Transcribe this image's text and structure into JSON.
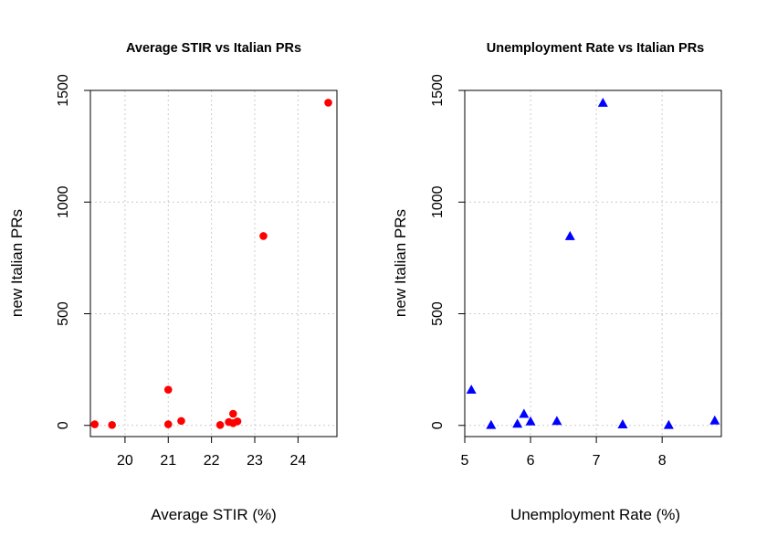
{
  "chart_data": [
    {
      "type": "scatter",
      "title": "Average STIR vs Italian PRs",
      "xlabel": "Average STIR (%)",
      "ylabel": "new Italian PRs",
      "xlim": [
        19.2,
        24.9
      ],
      "ylim": [
        -50,
        1500
      ],
      "x_ticks": [
        20,
        21,
        22,
        23,
        24
      ],
      "x_tick_labels": [
        "20",
        "21",
        "22",
        "23",
        "24"
      ],
      "y_ticks": [
        0,
        500,
        1000,
        1500
      ],
      "y_tick_labels": [
        "0",
        "500",
        "1000",
        "1500"
      ],
      "grid": true,
      "marker": "circle",
      "color": "#ff0000",
      "points": [
        {
          "x": 19.3,
          "y": 5
        },
        {
          "x": 19.7,
          "y": 2
        },
        {
          "x": 21.0,
          "y": 160
        },
        {
          "x": 21.0,
          "y": 5
        },
        {
          "x": 21.3,
          "y": 20
        },
        {
          "x": 22.2,
          "y": 2
        },
        {
          "x": 22.4,
          "y": 15
        },
        {
          "x": 22.5,
          "y": 52
        },
        {
          "x": 22.5,
          "y": 10
        },
        {
          "x": 22.6,
          "y": 18
        },
        {
          "x": 23.2,
          "y": 848
        },
        {
          "x": 24.7,
          "y": 1445
        }
      ]
    },
    {
      "type": "scatter",
      "title": "Unemployment Rate vs Italian PRs",
      "xlabel": "Unemployment Rate (%)",
      "ylabel": "new Italian PRs",
      "xlim": [
        5.0,
        8.9
      ],
      "ylim": [
        -50,
        1500
      ],
      "x_ticks": [
        5,
        6,
        7,
        8
      ],
      "x_tick_labels": [
        "5",
        "6",
        "7",
        "8"
      ],
      "y_ticks": [
        0,
        500,
        1000,
        1500
      ],
      "y_tick_labels": [
        "0",
        "500",
        "1000",
        "1500"
      ],
      "grid": true,
      "marker": "triangle",
      "color": "#0000ff",
      "points": [
        {
          "x": 5.1,
          "y": 160
        },
        {
          "x": 5.4,
          "y": 2
        },
        {
          "x": 5.8,
          "y": 8
        },
        {
          "x": 5.9,
          "y": 52
        },
        {
          "x": 6.0,
          "y": 18
        },
        {
          "x": 6.4,
          "y": 20
        },
        {
          "x": 6.6,
          "y": 848
        },
        {
          "x": 7.1,
          "y": 1445
        },
        {
          "x": 7.4,
          "y": 5
        },
        {
          "x": 8.1,
          "y": 2
        },
        {
          "x": 8.8,
          "y": 22
        }
      ]
    }
  ]
}
